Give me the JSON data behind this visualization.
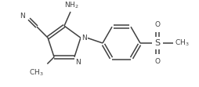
{
  "bg_color": "#ffffff",
  "line_color": "#404040",
  "line_width": 1.1,
  "font_size": 6.5,
  "figsize": [
    2.55,
    1.11
  ],
  "dpi": 100,
  "xlim": [
    0,
    255
  ],
  "ylim": [
    0,
    111
  ]
}
